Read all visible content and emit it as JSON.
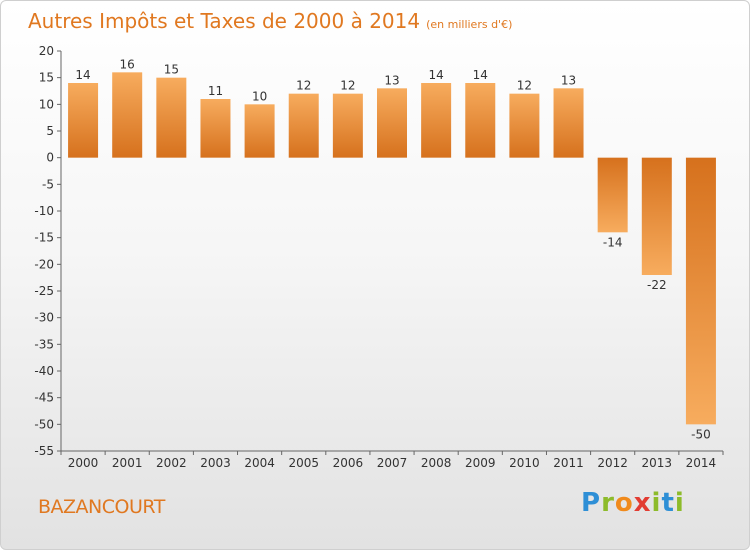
{
  "header": {
    "title": "Autres Impôts et Taxes de 2000 à 2014",
    "subtitle": "(en milliers d'€)"
  },
  "footer": {
    "commune": "BAZANCOURT",
    "logo": {
      "letters": [
        "P",
        "r",
        "o",
        "x",
        "i",
        "t",
        "i"
      ],
      "colors": [
        "#2e8fd6",
        "#8dbb2a",
        "#f08a1c",
        "#e23c32",
        "#8dbb2a",
        "#2e8fd6",
        "#8dbb2a"
      ]
    }
  },
  "chart_data": {
    "type": "bar",
    "title": "Autres Impôts et Taxes de 2000 à 2014",
    "subtitle": "(en milliers d'€)",
    "categories": [
      "2000",
      "2001",
      "2002",
      "2003",
      "2004",
      "2005",
      "2006",
      "2007",
      "2008",
      "2009",
      "2010",
      "2011",
      "2012",
      "2013",
      "2014"
    ],
    "values": [
      14,
      16,
      15,
      11,
      10,
      12,
      12,
      13,
      14,
      14,
      12,
      13,
      -14,
      -22,
      -50
    ],
    "ylim": [
      -55,
      20
    ],
    "yticks": [
      20,
      15,
      10,
      5,
      0,
      -5,
      -10,
      -15,
      -20,
      -25,
      -30,
      -35,
      -40,
      -45,
      -50,
      -55
    ],
    "grid": false,
    "colors": {
      "bar_light": "#f6a656",
      "bar_dark": "#d9741f",
      "axis": "#666666",
      "text": "#333333"
    }
  }
}
